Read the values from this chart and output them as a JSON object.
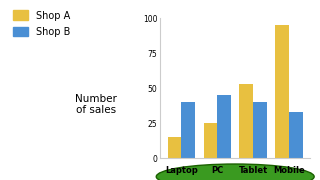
{
  "categories": [
    "Laptop",
    "PC",
    "Tablet",
    "Mobile"
  ],
  "shop_a": [
    15,
    25,
    53,
    95
  ],
  "shop_b": [
    40,
    45,
    40,
    33
  ],
  "shop_a_color": "#E8C040",
  "shop_b_color": "#4A8FD4",
  "ylabel": "Number\nof sales",
  "ylim": [
    0,
    100
  ],
  "yticks": [
    0,
    25,
    50,
    75,
    100
  ],
  "legend_a": "Shop A",
  "legend_b": "Shop B",
  "ellipse_color": "#3A9A20",
  "ellipse_edge": "#1A6000",
  "background_color": "#ffffff",
  "bar_width": 0.38
}
